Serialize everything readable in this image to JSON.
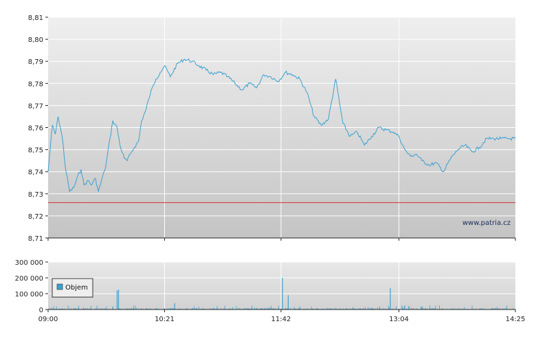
{
  "chart_data": [
    {
      "type": "line",
      "title": "",
      "xlabel": "",
      "ylabel": "",
      "ylim": [
        8.71,
        8.81
      ],
      "y_ticks": [
        "8,71",
        "8,72",
        "8,73",
        "8,74",
        "8,75",
        "8,76",
        "8,77",
        "8,78",
        "8,79",
        "8,80",
        "8,81"
      ],
      "x_ticks": [
        "09:00",
        "10:21",
        "11:42",
        "13:04",
        "14:25"
      ],
      "grid": true,
      "line_color": "#3aa0d0",
      "reference_line": {
        "value": 8.726,
        "color": "#d03030"
      },
      "watermark": "www.patria.cz",
      "series": [
        {
          "x": [
            "09:00",
            "09:03",
            "09:05",
            "09:07",
            "09:10",
            "09:12",
            "09:15",
            "09:18",
            "09:20",
            "09:23",
            "09:25",
            "09:28",
            "09:30",
            "09:33",
            "09:35",
            "09:38",
            "09:40",
            "09:43",
            "09:45",
            "09:48",
            "09:50",
            "09:53",
            "09:55",
            "09:58",
            "10:00",
            "10:03",
            "10:05",
            "10:08",
            "10:10",
            "10:13",
            "10:15",
            "10:18",
            "10:21",
            "10:25",
            "10:30",
            "10:35",
            "10:40",
            "10:45",
            "10:50",
            "10:55",
            "11:00",
            "11:05",
            "11:10",
            "11:15",
            "11:20",
            "11:25",
            "11:30",
            "11:35",
            "11:40",
            "11:45",
            "11:50",
            "11:55",
            "12:00",
            "12:05",
            "12:10",
            "12:15",
            "12:20",
            "12:25",
            "12:30",
            "12:35",
            "12:40",
            "12:45",
            "12:50",
            "12:55",
            "13:00",
            "13:04",
            "13:08",
            "13:12",
            "13:16",
            "13:20",
            "13:25",
            "13:30",
            "13:35",
            "13:40",
            "13:45",
            "13:50",
            "13:55",
            "14:00",
            "14:05",
            "14:10",
            "14:15",
            "14:20",
            "14:25"
          ],
          "values": [
            8.74,
            8.761,
            8.757,
            8.765,
            8.755,
            8.742,
            8.731,
            8.733,
            8.737,
            8.741,
            8.734,
            8.736,
            8.734,
            8.737,
            8.731,
            8.738,
            8.742,
            8.755,
            8.763,
            8.76,
            8.752,
            8.746,
            8.745,
            8.749,
            8.751,
            8.754,
            8.763,
            8.768,
            8.773,
            8.779,
            8.782,
            8.785,
            8.788,
            8.783,
            8.789,
            8.791,
            8.79,
            8.788,
            8.786,
            8.784,
            8.785,
            8.783,
            8.78,
            8.777,
            8.78,
            8.778,
            8.784,
            8.783,
            8.781,
            8.785,
            8.784,
            8.782,
            8.776,
            8.765,
            8.761,
            8.764,
            8.782,
            8.762,
            8.756,
            8.758,
            8.752,
            8.756,
            8.76,
            8.759,
            8.758,
            8.756,
            8.75,
            8.747,
            8.748,
            8.745,
            8.743,
            8.744,
            8.74,
            8.746,
            8.75,
            8.752,
            8.749,
            8.751,
            8.755,
            8.755,
            8.755,
            8.755,
            8.755
          ]
        }
      ]
    },
    {
      "type": "bar",
      "title": "",
      "ylim": [
        0,
        300000
      ],
      "y_ticks": [
        "0",
        "100 000",
        "200 000",
        "300 000"
      ],
      "x_ticks": [
        "09:00",
        "10:21",
        "11:42",
        "13:04",
        "14:25"
      ],
      "grid": true,
      "bar_color": "#3aa0d0",
      "legend": {
        "position": "top-left",
        "label": "Objem"
      },
      "series": [
        {
          "name": "Objem",
          "x": [
            "09:45",
            "09:48",
            "09:49",
            "10:28",
            "11:43",
            "11:47",
            "12:58",
            "13:08",
            "13:20"
          ],
          "values": [
            18000,
            120000,
            125000,
            40000,
            200000,
            90000,
            135000,
            25000,
            20000
          ]
        }
      ]
    }
  ]
}
